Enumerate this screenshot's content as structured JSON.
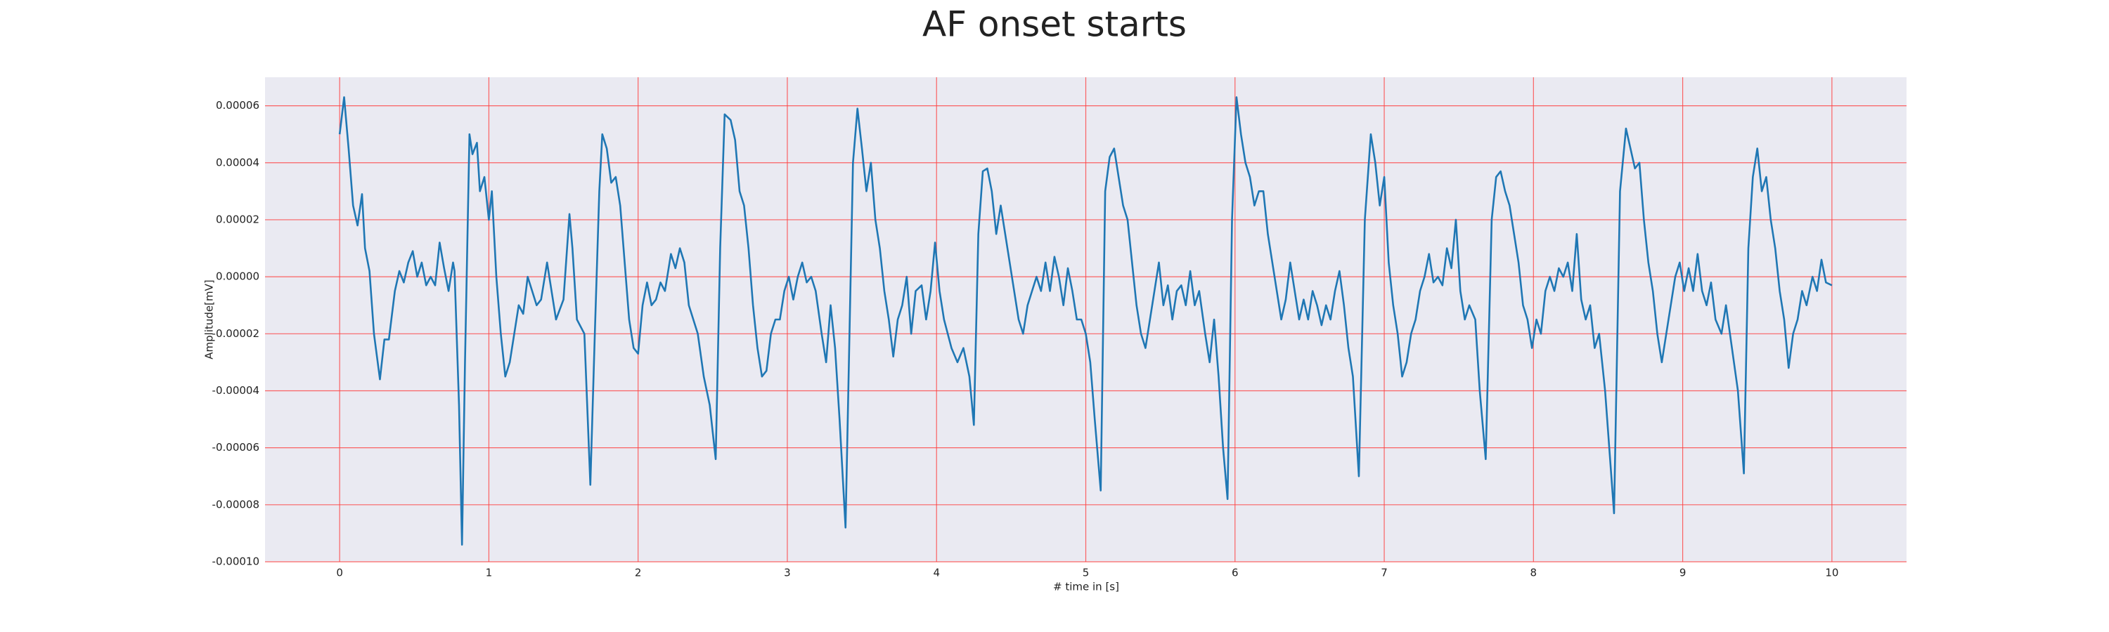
{
  "chart_data": {
    "type": "line",
    "title": "AF onset starts",
    "xlabel": "# time in [s]",
    "ylabel": "Amplitude[mV]",
    "color": "#1f77b4",
    "grid": true,
    "xlim": [
      -0.5,
      10.5
    ],
    "ylim": [
      -0.0001,
      7e-05
    ],
    "xticks": [
      0,
      1,
      2,
      3,
      4,
      5,
      6,
      7,
      8,
      9,
      10
    ],
    "yticks": [
      {
        "value": -0.0001,
        "label": "-0.00010"
      },
      {
        "value": -8e-05,
        "label": "-0.00008"
      },
      {
        "value": -6e-05,
        "label": "-0.00006"
      },
      {
        "value": -4e-05,
        "label": "-0.00004"
      },
      {
        "value": -2e-05,
        "label": "-0.00002"
      },
      {
        "value": 0,
        "label": "0.00000"
      },
      {
        "value": 2e-05,
        "label": "0.00002"
      },
      {
        "value": 4e-05,
        "label": "0.00004"
      },
      {
        "value": 6e-05,
        "label": "0.00006"
      }
    ],
    "x": [
      0.0,
      0.03,
      0.06,
      0.09,
      0.12,
      0.15,
      0.17,
      0.2,
      0.23,
      0.27,
      0.3,
      0.33,
      0.37,
      0.4,
      0.43,
      0.46,
      0.49,
      0.52,
      0.55,
      0.58,
      0.61,
      0.64,
      0.67,
      0.7,
      0.73,
      0.76,
      0.77,
      0.8,
      0.82,
      0.84,
      0.87,
      0.89,
      0.92,
      0.94,
      0.97,
      1.0,
      1.02,
      1.05,
      1.08,
      1.11,
      1.14,
      1.17,
      1.2,
      1.23,
      1.26,
      1.29,
      1.32,
      1.35,
      1.39,
      1.42,
      1.45,
      1.5,
      1.54,
      1.56,
      1.59,
      1.64,
      1.68,
      1.71,
      1.74,
      1.76,
      1.79,
      1.82,
      1.85,
      1.88,
      1.91,
      1.94,
      1.97,
      2.0,
      2.03,
      2.06,
      2.09,
      2.12,
      2.15,
      2.18,
      2.22,
      2.25,
      2.28,
      2.31,
      2.34,
      2.4,
      2.44,
      2.48,
      2.52,
      2.55,
      2.58,
      2.62,
      2.65,
      2.68,
      2.71,
      2.74,
      2.77,
      2.8,
      2.83,
      2.86,
      2.89,
      2.92,
      2.95,
      2.98,
      3.01,
      3.04,
      3.07,
      3.1,
      3.13,
      3.16,
      3.19,
      3.23,
      3.26,
      3.29,
      3.32,
      3.35,
      3.39,
      3.44,
      3.47,
      3.5,
      3.53,
      3.56,
      3.59,
      3.62,
      3.65,
      3.68,
      3.71,
      3.74,
      3.77,
      3.8,
      3.83,
      3.86,
      3.9,
      3.93,
      3.96,
      3.99,
      4.02,
      4.05,
      4.1,
      4.14,
      4.18,
      4.22,
      4.25,
      4.28,
      4.31,
      4.34,
      4.37,
      4.4,
      4.43,
      4.46,
      4.49,
      4.52,
      4.55,
      4.58,
      4.61,
      4.64,
      4.67,
      4.7,
      4.73,
      4.76,
      4.79,
      4.82,
      4.85,
      4.88,
      4.91,
      4.94,
      4.97,
      5.0,
      5.03,
      5.06,
      5.1,
      5.13,
      5.16,
      5.19,
      5.22,
      5.25,
      5.28,
      5.31,
      5.34,
      5.37,
      5.4,
      5.43,
      5.46,
      5.49,
      5.52,
      5.55,
      5.58,
      5.61,
      5.64,
      5.67,
      5.7,
      5.73,
      5.76,
      5.8,
      5.83,
      5.86,
      5.89,
      5.92,
      5.95,
      5.98,
      6.01,
      6.04,
      6.07,
      6.1,
      6.13,
      6.16,
      6.19,
      6.22,
      6.25,
      6.28,
      6.31,
      6.34,
      6.37,
      6.4,
      6.43,
      6.46,
      6.49,
      6.52,
      6.55,
      6.58,
      6.61,
      6.64,
      6.67,
      6.7,
      6.73,
      6.76,
      6.79,
      6.83,
      6.87,
      6.91,
      6.94,
      6.97,
      7.0,
      7.03,
      7.06,
      7.09,
      7.12,
      7.15,
      7.18,
      7.21,
      7.24,
      7.27,
      7.3,
      7.33,
      7.36,
      7.39,
      7.42,
      7.45,
      7.48,
      7.51,
      7.54,
      7.57,
      7.61,
      7.64,
      7.68,
      7.72,
      7.75,
      7.78,
      7.81,
      7.84,
      7.87,
      7.9,
      7.93,
      7.96,
      7.99,
      8.02,
      8.05,
      8.08,
      8.11,
      8.14,
      8.17,
      8.2,
      8.23,
      8.26,
      8.29,
      8.32,
      8.35,
      8.38,
      8.41,
      8.44,
      8.48,
      8.54,
      8.58,
      8.62,
      8.65,
      8.68,
      8.71,
      8.74,
      8.77,
      8.8,
      8.83,
      8.86,
      8.89,
      8.92,
      8.95,
      8.98,
      9.01,
      9.04,
      9.07,
      9.1,
      9.13,
      9.16,
      9.19,
      9.22,
      9.26,
      9.29,
      9.33,
      9.37,
      9.41,
      9.44,
      9.47,
      9.5,
      9.53,
      9.56,
      9.59,
      9.62,
      9.65,
      9.68,
      9.71,
      9.74,
      9.77,
      9.8,
      9.83,
      9.87,
      9.9,
      9.93,
      9.96,
      10.0
    ],
    "values": [
      5e-05,
      6.3e-05,
      4.5e-05,
      2.5e-05,
      1.8e-05,
      2.9e-05,
      1e-05,
      2e-06,
      -2e-05,
      -3.6e-05,
      -2.2e-05,
      -2.2e-05,
      -5e-06,
      2e-06,
      -2e-06,
      5e-06,
      9e-06,
      0.0,
      5e-06,
      -3e-06,
      0.0,
      -3e-06,
      1.2e-05,
      3e-06,
      -5e-06,
      5e-06,
      2e-06,
      -4.5e-05,
      -9.4e-05,
      -3e-05,
      5e-05,
      4.3e-05,
      4.7e-05,
      3e-05,
      3.5e-05,
      2e-05,
      3e-05,
      0.0,
      -2e-05,
      -3.5e-05,
      -3e-05,
      -2e-05,
      -1e-05,
      -1.3e-05,
      0.0,
      -5e-06,
      -1e-05,
      -8e-06,
      5e-06,
      -5e-06,
      -1.5e-05,
      -8e-06,
      2.2e-05,
      1e-05,
      -1.5e-05,
      -2e-05,
      -7.3e-05,
      -2e-05,
      3e-05,
      5e-05,
      4.5e-05,
      3.3e-05,
      3.5e-05,
      2.5e-05,
      5e-06,
      -1.5e-05,
      -2.5e-05,
      -2.7e-05,
      -1e-05,
      -2e-06,
      -1e-05,
      -8e-06,
      -2e-06,
      -5e-06,
      8e-06,
      3e-06,
      1e-05,
      5e-06,
      -1e-05,
      -2e-05,
      -3.5e-05,
      -4.5e-05,
      -6.4e-05,
      1e-05,
      5.7e-05,
      5.5e-05,
      4.8e-05,
      3e-05,
      2.5e-05,
      1e-05,
      -1e-05,
      -2.5e-05,
      -3.5e-05,
      -3.3e-05,
      -2e-05,
      -1.5e-05,
      -1.5e-05,
      -5e-06,
      0.0,
      -8e-06,
      0.0,
      5e-06,
      -2e-06,
      0.0,
      -5e-06,
      -2e-05,
      -3e-05,
      -1e-05,
      -2.5e-05,
      -5e-05,
      -8.8e-05,
      4e-05,
      5.9e-05,
      4.5e-05,
      3e-05,
      4e-05,
      2e-05,
      1e-05,
      -5e-06,
      -1.5e-05,
      -2.8e-05,
      -1.5e-05,
      -1e-05,
      0.0,
      -2e-05,
      -5e-06,
      -3e-06,
      -1.5e-05,
      -5e-06,
      1.2e-05,
      -5e-06,
      -1.5e-05,
      -2.5e-05,
      -3e-05,
      -2.5e-05,
      -3.5e-05,
      -5.2e-05,
      1.5e-05,
      3.7e-05,
      3.8e-05,
      3e-05,
      1.5e-05,
      2.5e-05,
      1.5e-05,
      5e-06,
      -5e-06,
      -1.5e-05,
      -2e-05,
      -1e-05,
      -5e-06,
      0.0,
      -5e-06,
      5e-06,
      -5e-06,
      7e-06,
      0.0,
      -1e-05,
      3e-06,
      -5e-06,
      -1.5e-05,
      -1.5e-05,
      -2e-05,
      -3e-05,
      -5e-05,
      -7.5e-05,
      3e-05,
      4.2e-05,
      4.5e-05,
      3.5e-05,
      2.5e-05,
      2e-05,
      5e-06,
      -1e-05,
      -2e-05,
      -2.5e-05,
      -1.5e-05,
      -5e-06,
      5e-06,
      -1e-05,
      -3e-06,
      -1.5e-05,
      -5e-06,
      -3e-06,
      -1e-05,
      2e-06,
      -1e-05,
      -5e-06,
      -2e-05,
      -3e-05,
      -1.5e-05,
      -3.5e-05,
      -6e-05,
      -7.8e-05,
      2e-05,
      6.3e-05,
      5e-05,
      4e-05,
      3.5e-05,
      2.5e-05,
      3e-05,
      3e-05,
      1.5e-05,
      5e-06,
      -5e-06,
      -1.5e-05,
      -8e-06,
      5e-06,
      -5e-06,
      -1.5e-05,
      -8e-06,
      -1.5e-05,
      -5e-06,
      -1e-05,
      -1.7e-05,
      -1e-05,
      -1.5e-05,
      -5e-06,
      2e-06,
      -1e-05,
      -2.5e-05,
      -3.5e-05,
      -7e-05,
      2e-05,
      5e-05,
      4e-05,
      2.5e-05,
      3.5e-05,
      5e-06,
      -1e-05,
      -2e-05,
      -3.5e-05,
      -3e-05,
      -2e-05,
      -1.5e-05,
      -5e-06,
      0.0,
      8e-06,
      -2e-06,
      0.0,
      -3e-06,
      1e-05,
      3e-06,
      2e-05,
      -5e-06,
      -1.5e-05,
      -1e-05,
      -1.5e-05,
      -4e-05,
      -6.4e-05,
      2e-05,
      3.5e-05,
      3.7e-05,
      3e-05,
      2.5e-05,
      1.5e-05,
      5e-06,
      -1e-05,
      -1.5e-05,
      -2.5e-05,
      -1.5e-05,
      -2e-05,
      -5e-06,
      0.0,
      -5e-06,
      3e-06,
      0.0,
      5e-06,
      -5e-06,
      1.5e-05,
      -8e-06,
      -1.5e-05,
      -1e-05,
      -2.5e-05,
      -2e-05,
      -4e-05,
      -8.3e-05,
      3e-05,
      5.2e-05,
      4.5e-05,
      3.8e-05,
      4e-05,
      2e-05,
      5e-06,
      -5e-06,
      -2e-05,
      -3e-05,
      -2e-05,
      -1e-05,
      0.0,
      5e-06,
      -5e-06,
      3e-06,
      -5e-06,
      8e-06,
      -5e-06,
      -1e-05,
      -2e-06,
      -1.5e-05,
      -2e-05,
      -1e-05,
      -2.5e-05,
      -4e-05,
      -6.9e-05,
      1e-05,
      3.5e-05,
      4.5e-05,
      3e-05,
      3.5e-05,
      2e-05,
      1e-05,
      -5e-06,
      -1.5e-05,
      -3.2e-05,
      -2e-05,
      -1.5e-05,
      -5e-06,
      -1e-05,
      0.0,
      -5e-06,
      6e-06,
      -2e-06,
      -3e-06
    ]
  }
}
